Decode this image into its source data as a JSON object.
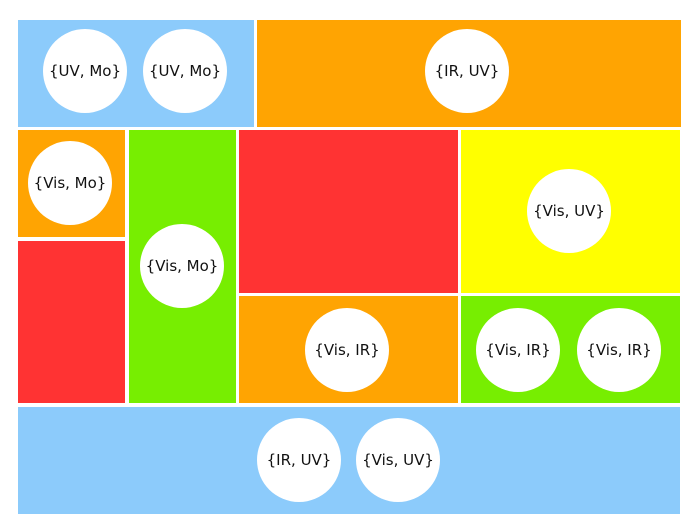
{
  "palette": {
    "blue": "#8ccbfb",
    "orange": "#ffa402",
    "red": "#ff3333",
    "green": "#77ee01",
    "yellow": "#ffff00"
  },
  "regions": [
    {
      "color": "blue",
      "labels": [
        "{UV, Mo}",
        "{UV, Mo}"
      ]
    },
    {
      "color": "orange",
      "labels": [
        "{IR, UV}"
      ]
    },
    {
      "color": "orange",
      "labels": [
        "{Vis, Mo}"
      ]
    },
    {
      "color": "red",
      "labels": []
    },
    {
      "color": "green",
      "labels": [
        "{Vis, Mo}"
      ]
    },
    {
      "color": "red",
      "labels": []
    },
    {
      "color": "yellow",
      "labels": [
        "{Vis, UV}"
      ]
    },
    {
      "color": "orange",
      "labels": [
        "{Vis, IR}"
      ]
    },
    {
      "color": "green",
      "labels": [
        "{Vis, IR}",
        "{Vis, IR}"
      ]
    },
    {
      "color": "blue",
      "labels": [
        "{IR, UV}",
        "{Vis, UV}"
      ]
    }
  ]
}
